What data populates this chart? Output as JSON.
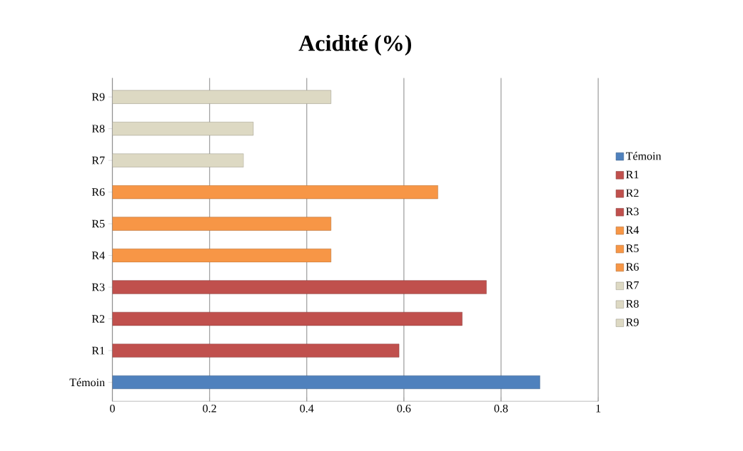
{
  "chart_data": {
    "type": "bar",
    "orientation": "horizontal",
    "title": "**Acidité (%)**",
    "categories": [
      "R9",
      "R8",
      "R7",
      "R6",
      "R5",
      "R4",
      "R3",
      "R2",
      "R1",
      "Témoin"
    ],
    "series": [
      {
        "name": "Témoin",
        "color": "#4f81bd",
        "values": [
          null,
          null,
          null,
          null,
          null,
          null,
          null,
          null,
          null,
          0.88
        ]
      },
      {
        "name": "R1",
        "color": "#c0504d",
        "values": [
          null,
          null,
          null,
          null,
          null,
          null,
          null,
          null,
          0.59,
          null
        ]
      },
      {
        "name": "R2",
        "color": "#c0504d",
        "values": [
          null,
          null,
          null,
          null,
          null,
          null,
          null,
          0.72,
          null,
          null
        ]
      },
      {
        "name": "R3",
        "color": "#c0504d",
        "values": [
          null,
          null,
          null,
          null,
          null,
          null,
          0.77,
          null,
          null,
          null
        ]
      },
      {
        "name": "R4",
        "color": "#f79646",
        "values": [
          null,
          null,
          null,
          null,
          null,
          0.45,
          null,
          null,
          null,
          null
        ]
      },
      {
        "name": "R5",
        "color": "#f79646",
        "values": [
          null,
          null,
          null,
          null,
          0.45,
          null,
          null,
          null,
          null,
          null
        ]
      },
      {
        "name": "R6",
        "color": "#f79646",
        "values": [
          null,
          null,
          null,
          0.67,
          null,
          null,
          null,
          null,
          null,
          null
        ]
      },
      {
        "name": "R7",
        "color": "#ddd9c3",
        "values": [
          null,
          null,
          0.27,
          null,
          null,
          null,
          null,
          null,
          null,
          null
        ]
      },
      {
        "name": "R8",
        "color": "#ddd9c3",
        "values": [
          null,
          0.29,
          null,
          null,
          null,
          null,
          null,
          null,
          null,
          null
        ]
      },
      {
        "name": "R9",
        "color": "#ddd9c3",
        "values": [
          0.45,
          null,
          null,
          null,
          null,
          null,
          null,
          null,
          null,
          null
        ]
      }
    ],
    "xlim": [
      0,
      1
    ],
    "xticks": [
      0,
      0.2,
      0.4,
      0.6,
      0.8,
      1
    ],
    "grid": "x",
    "legend": "right"
  }
}
